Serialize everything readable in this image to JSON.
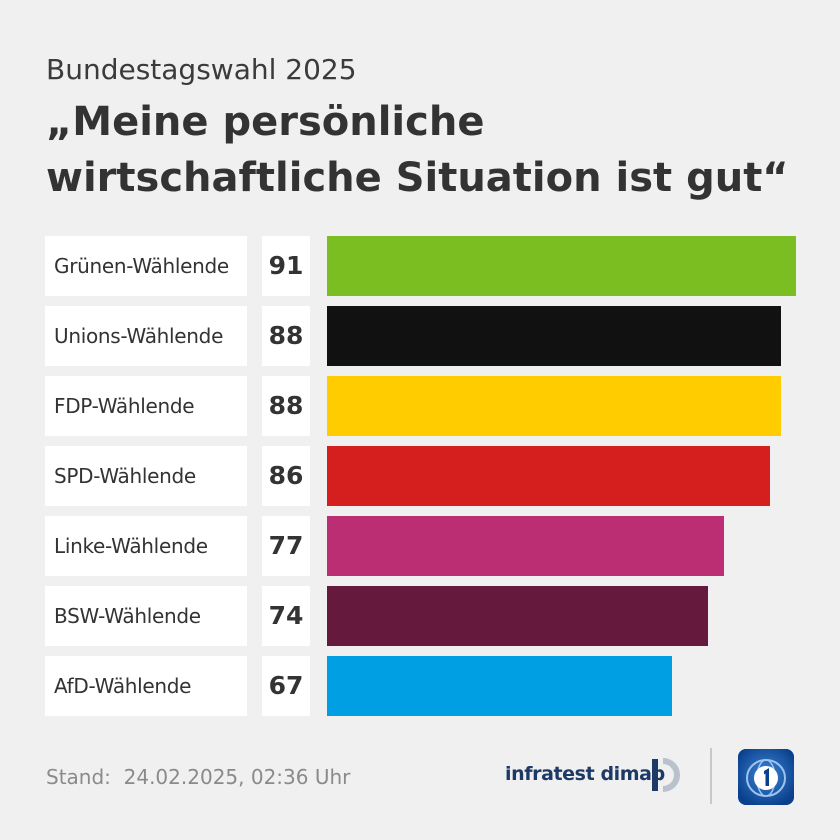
{
  "header": {
    "subtitle": "Bundestagswahl 2025",
    "title": "„Meine persönliche wirtschaftliche Situation ist gut“"
  },
  "chart_data": {
    "type": "bar",
    "orientation": "horizontal",
    "categories": [
      "Grünen-Wählende",
      "Unions-Wählende",
      "FDP-Wählende",
      "SPD-Wählende",
      "Linke-Wählende",
      "BSW-Wählende",
      "AfD-Wählende"
    ],
    "values": [
      91,
      88,
      88,
      86,
      77,
      74,
      67
    ],
    "value_labels": [
      "91",
      "88",
      "88",
      "86",
      "77",
      "74",
      "67"
    ],
    "colors": [
      "#7abe22",
      "#111111",
      "#ffcc00",
      "#d51f1f",
      "#bc2e74",
      "#651a3d",
      "#009fe3"
    ],
    "title": "„Meine persönliche wirtschaftliche Situation ist gut“",
    "xlim": [
      0,
      91
    ],
    "grid": false,
    "legend": "none"
  },
  "footer": {
    "stand_label": "Stand:",
    "stand_value": "24.02.2025, 02:36 Uhr",
    "brand": "infratest dimap",
    "logo_icon": "infratest-dimap-logo-icon",
    "broadcaster_icon": "tagesschau-logo-icon"
  },
  "colors": {
    "background": "#f0f0f0",
    "label_background": "#ffffff",
    "brand": "#1d3a67",
    "tagesschau_blue": "#0a3f8c"
  }
}
